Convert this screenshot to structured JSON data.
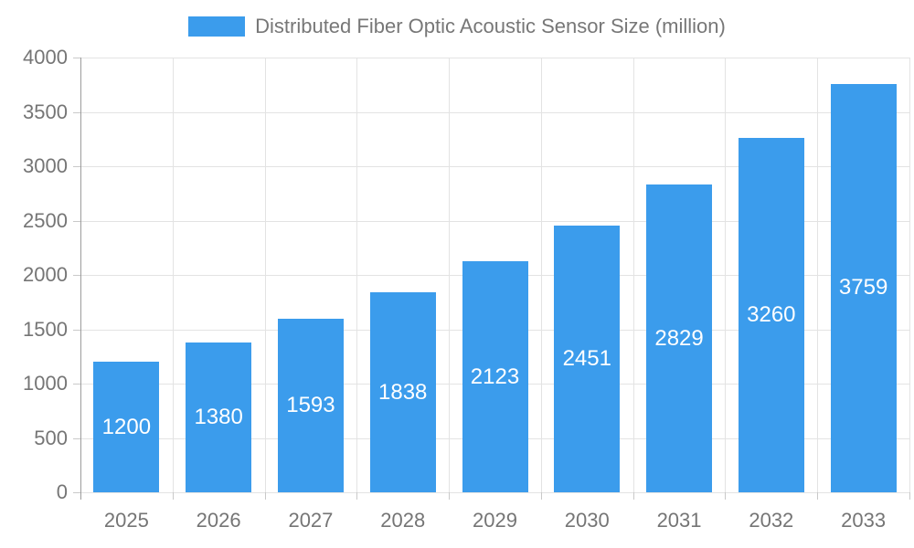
{
  "chart_data": {
    "type": "bar",
    "title": "Distributed Fiber Optic Acoustic Sensor Size (million)",
    "categories": [
      "2025",
      "2026",
      "2027",
      "2028",
      "2029",
      "2030",
      "2031",
      "2032",
      "2033"
    ],
    "values": [
      1200,
      1380,
      1593,
      1838,
      2123,
      2451,
      2829,
      3260,
      3759
    ],
    "xlabel": "",
    "ylabel": "",
    "ylim": [
      0,
      4000
    ],
    "y_tick_step": 500,
    "y_tick_labels": [
      "0",
      "500",
      "1000",
      "1500",
      "2000",
      "2500",
      "3000",
      "3500",
      "4000"
    ],
    "legend_position": "top",
    "grid": true,
    "bar_color": "#3b9cec",
    "bar_label_color": "#ffffff",
    "axis_text_color": "#757575",
    "grid_color": "#e3e3e3",
    "axis_line_color": "#9c9c9c"
  }
}
